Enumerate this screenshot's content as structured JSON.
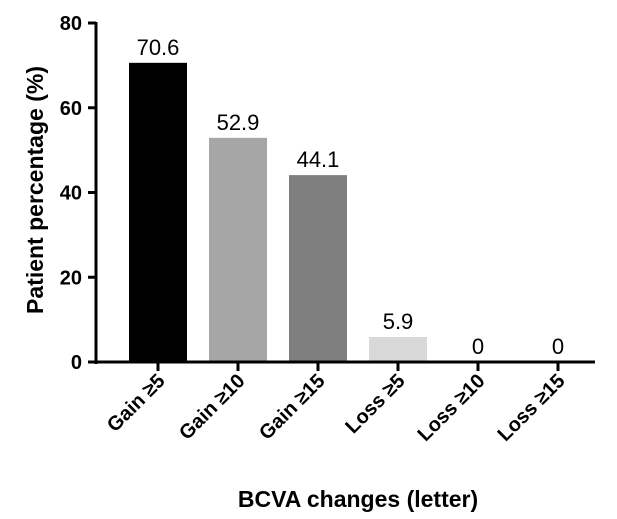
{
  "chart_data": {
    "type": "bar",
    "categories": [
      "Gain ≥5",
      "Gain ≥10",
      "Gain ≥15",
      "Loss ≥5",
      "Loss ≥10",
      "Loss ≥15"
    ],
    "values": [
      70.6,
      52.9,
      44.1,
      5.9,
      0,
      0
    ],
    "data_labels": [
      "70.6",
      "52.9",
      "44.1",
      "5.9",
      "0",
      "0"
    ],
    "bar_colors": [
      "#000000",
      "#a6a6a6",
      "#7f7f7f",
      "#d9d9d9",
      "#ffffff",
      "#ffffff"
    ],
    "title": "",
    "xlabel": "BCVA changes (letter)",
    "ylabel": "Patient percentage (%)",
    "ylim": [
      0,
      80
    ],
    "yticks": [
      0,
      20,
      40,
      60,
      80
    ],
    "ytick_labels": [
      "0",
      "20",
      "40",
      "60",
      "80"
    ],
    "grid": false,
    "legend": "none"
  }
}
